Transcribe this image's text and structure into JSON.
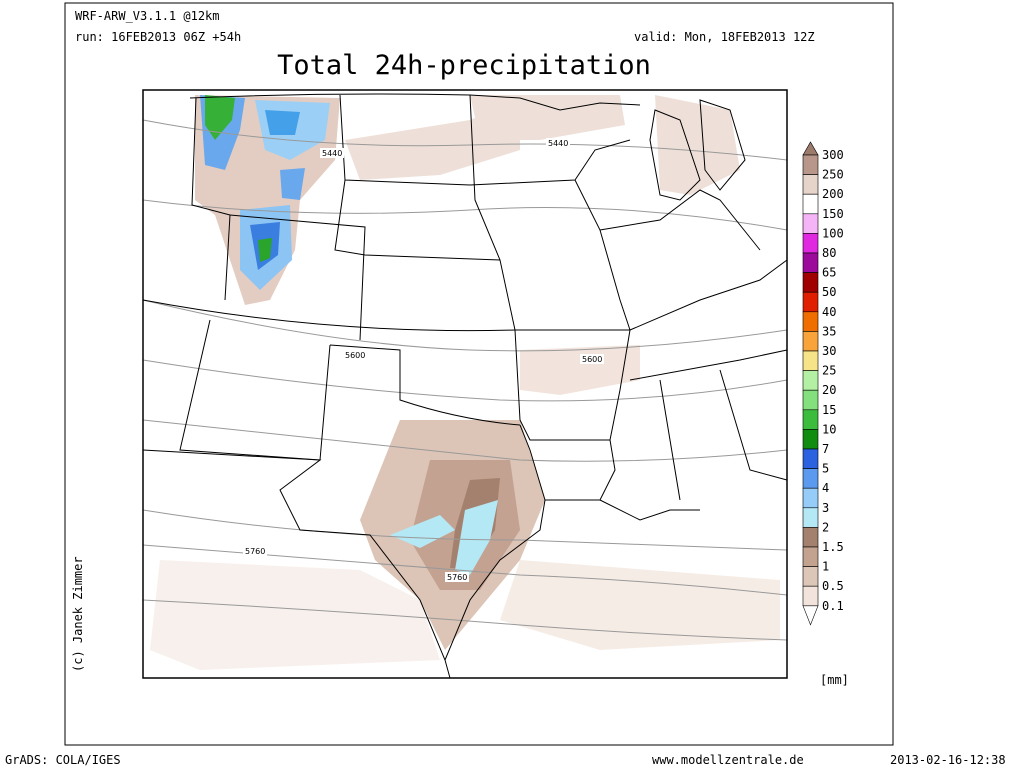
{
  "header": {
    "model": "WRF-ARW_V3.1.1 @12km",
    "run": "run: 16FEB2013 06Z +54h",
    "valid": "valid: Mon, 18FEB2013 12Z"
  },
  "title": "Total 24h-precipitation",
  "credit": "(c) Janek Zimmer",
  "contour_labels": [
    "5440",
    "5440",
    "5600",
    "5600",
    "5760",
    "5760"
  ],
  "colorbar": {
    "levels": [
      300,
      250,
      200,
      150,
      100,
      80,
      65,
      50,
      40,
      35,
      30,
      25,
      20,
      15,
      10,
      7,
      5,
      4,
      3,
      2,
      1.5,
      1,
      0.5,
      0.1
    ],
    "colors": [
      "#9c7a6c",
      "#b8978a",
      "#e6d3ca",
      "#ffffff",
      "#f5b4f5",
      "#e028e0",
      "#9c0a9c",
      "#a00000",
      "#e01e00",
      "#f06e00",
      "#f8a43a",
      "#f8e488",
      "#b4f0a4",
      "#84e07c",
      "#3cbc3c",
      "#108c10",
      "#2a62e0",
      "#5c9af0",
      "#96ccf8",
      "#b4e8f4",
      "#a4806e",
      "#c3a290",
      "#dcc6b8",
      "#f2e4dc",
      "#ffffff"
    ],
    "unit": "[mm]"
  },
  "footer": {
    "left": "GrADS: COLA/IGES",
    "center": "www.modellzentrale.de",
    "right": "2013-02-16-12:38"
  }
}
